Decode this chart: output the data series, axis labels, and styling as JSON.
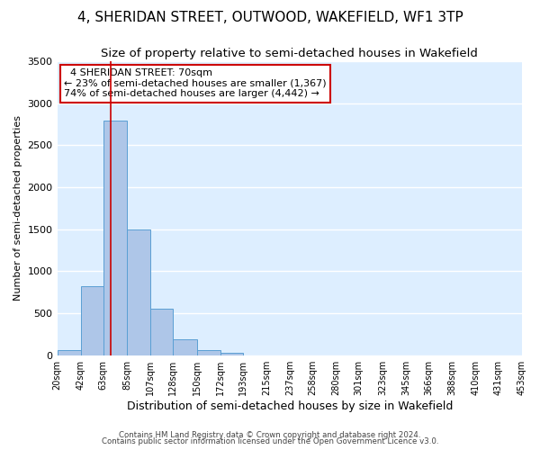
{
  "title": "4, SHERIDAN STREET, OUTWOOD, WAKEFIELD, WF1 3TP",
  "subtitle": "Size of property relative to semi-detached houses in Wakefield",
  "xlabel": "Distribution of semi-detached houses by size in Wakefield",
  "ylabel": "Number of semi-detached properties",
  "footer_line1": "Contains HM Land Registry data © Crown copyright and database right 2024.",
  "footer_line2": "Contains public sector information licensed under the Open Government Licence v3.0.",
  "annotation_title": "4 SHERIDAN STREET: 70sqm",
  "annotation_line1": "← 23% of semi-detached houses are smaller (1,367)",
  "annotation_line2": "74% of semi-detached houses are larger (4,442) →",
  "bar_edges": [
    20,
    42,
    63,
    85,
    107,
    128,
    150,
    172,
    193,
    215,
    237,
    258,
    280,
    301,
    323,
    345,
    366,
    388,
    410,
    431,
    453
  ],
  "bar_heights": [
    65,
    820,
    2790,
    1500,
    555,
    195,
    65,
    30,
    0,
    0,
    0,
    0,
    0,
    0,
    0,
    0,
    0,
    0,
    0,
    0
  ],
  "bar_color": "#aec6e8",
  "bar_edge_color": "#5a9fd4",
  "property_value": 70,
  "red_line_color": "#cc0000",
  "ylim": [
    0,
    3500
  ],
  "xlim": [
    20,
    453
  ],
  "background_color": "#ffffff",
  "plot_bg_color": "#ddeeff",
  "grid_color": "#ffffff",
  "title_fontsize": 11,
  "subtitle_fontsize": 9.5,
  "annotation_box_color": "#ffffff",
  "annotation_box_edge": "#cc0000",
  "yticks": [
    0,
    500,
    1000,
    1500,
    2000,
    2500,
    3000,
    3500
  ]
}
